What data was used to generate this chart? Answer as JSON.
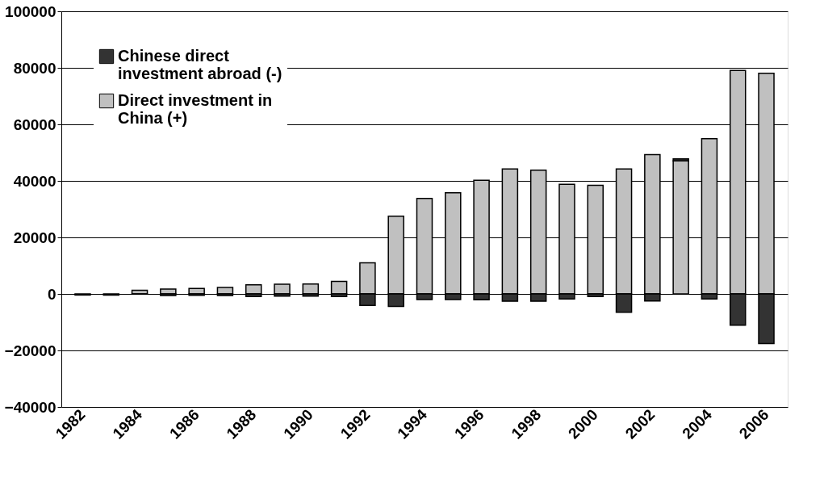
{
  "chart_data": {
    "type": "bar",
    "stacked": true,
    "categories": [
      "1982",
      null,
      "1984",
      null,
      "1986",
      null,
      "1988",
      null,
      "1990",
      null,
      "1992",
      null,
      "1994",
      null,
      "1996",
      null,
      "1998",
      null,
      "2000",
      null,
      "2002",
      null,
      "2004",
      null,
      "2006"
    ],
    "series": [
      {
        "name": "Direct investment in China (+)",
        "color": "#c0c0c0",
        "values": [
          null,
          null,
          1300,
          1700,
          1900,
          2300,
          3200,
          3400,
          3500,
          4400,
          11000,
          27500,
          33800,
          35800,
          40200,
          44200,
          43800,
          38800,
          38400,
          44200,
          49300,
          47100,
          54900,
          79100,
          78100
        ]
      },
      {
        "name": "Chinese direct investment abroad (-)",
        "color": "#333333",
        "values": [
          -400,
          -400,
          -100,
          -600,
          -500,
          -600,
          -900,
          -800,
          -800,
          -900,
          -4100,
          -4400,
          -2000,
          -2000,
          -2100,
          -2600,
          -2600,
          -1800,
          -900,
          -6500,
          -2500,
          700,
          -1800,
          -11100,
          -17600
        ]
      }
    ],
    "ylim": [
      -40000,
      100000
    ],
    "yticks": [
      -40000,
      -20000,
      0,
      20000,
      40000,
      60000,
      80000,
      100000
    ],
    "grid": "y",
    "legend": "top left"
  }
}
